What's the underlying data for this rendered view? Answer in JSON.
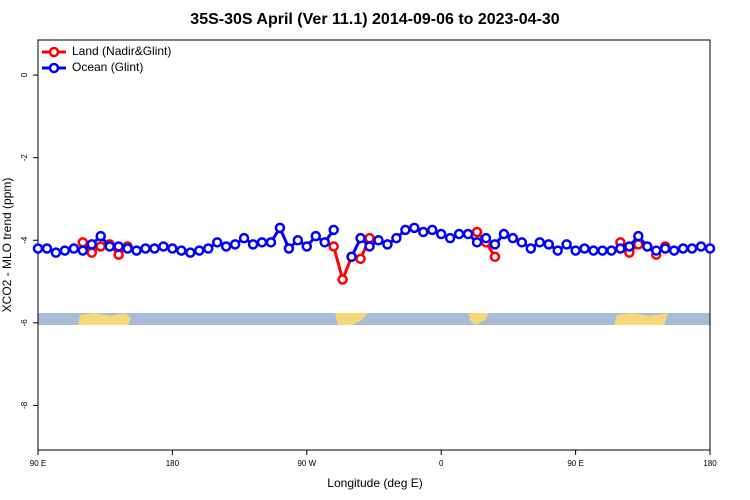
{
  "chart_data": {
    "type": "line",
    "title": "35S-30S April (Ver 11.1)   2014-09-06 to 2023-04-30",
    "x_label": "Longitude (deg E)",
    "y_label": "XCO2 - MLO trend (ppm)",
    "x": [
      -270,
      -264,
      -258,
      -252,
      -246,
      -240,
      -234,
      -228,
      -222,
      -216,
      -210,
      -204,
      -198,
      -192,
      -186,
      -180,
      -174,
      -168,
      -162,
      -156,
      -150,
      -144,
      -138,
      -132,
      -126,
      -120,
      -114,
      -108,
      -102,
      -96,
      -90,
      -84,
      -78,
      -72,
      -66,
      -60,
      -54,
      -48,
      -42,
      -36,
      -30,
      -24,
      -18,
      -12,
      -6,
      0,
      6,
      12,
      18,
      24,
      30,
      36,
      42,
      48,
      54,
      60,
      66,
      72,
      78,
      84,
      90,
      96,
      102,
      108,
      114,
      120,
      126,
      132,
      138,
      144,
      150,
      156,
      162,
      168,
      174,
      180
    ],
    "series": [
      {
        "name": "Land (Nadir&Glint)",
        "color": "#ff0000",
        "values": [
          null,
          null,
          null,
          null,
          null,
          -4.05,
          -4.3,
          -4.15,
          -4.1,
          -4.35,
          -4.15,
          null,
          null,
          null,
          null,
          null,
          null,
          null,
          null,
          null,
          null,
          null,
          null,
          null,
          null,
          null,
          null,
          null,
          null,
          null,
          null,
          null,
          null,
          -4.15,
          -4.95,
          -4.4,
          -4.45,
          -3.95,
          null,
          null,
          null,
          null,
          null,
          null,
          null,
          null,
          null,
          null,
          null,
          -3.8,
          -4.05,
          -4.4,
          null,
          null,
          null,
          null,
          null,
          null,
          null,
          null,
          null,
          null,
          null,
          null,
          null,
          -4.05,
          -4.3,
          -4.1,
          -4.15,
          -4.35,
          -4.15,
          null,
          null,
          null,
          null,
          null
        ]
      },
      {
        "name": "Ocean (Glint)",
        "color": "#0000ff",
        "values": [
          -4.2,
          -4.2,
          -4.3,
          -4.25,
          -4.2,
          -4.25,
          -4.1,
          -3.9,
          -4.15,
          -4.15,
          -4.2,
          -4.25,
          -4.2,
          -4.2,
          -4.15,
          -4.2,
          -4.25,
          -4.3,
          -4.25,
          -4.2,
          -4.05,
          -4.15,
          -4.1,
          -3.95,
          -4.1,
          -4.05,
          -4.05,
          -3.7,
          -4.2,
          -4.0,
          -4.15,
          -3.9,
          -4.05,
          -3.75,
          null,
          -4.4,
          -3.95,
          -4.15,
          -4.0,
          -4.1,
          -3.95,
          -3.75,
          -3.7,
          -3.8,
          -3.75,
          -3.85,
          -3.95,
          -3.85,
          -3.85,
          -4.05,
          -3.95,
          -4.1,
          -3.85,
          -3.95,
          -4.05,
          -4.2,
          -4.05,
          -4.1,
          -4.25,
          -4.1,
          -4.25,
          -4.2,
          -4.25,
          -4.25,
          -4.25,
          -4.2,
          -4.15,
          -3.9,
          -4.15,
          -4.25,
          -4.2,
          -4.25,
          -4.2,
          -4.2,
          -4.15,
          -4.2
        ]
      }
    ],
    "xlim": [
      -270,
      180
    ],
    "xticks": [
      {
        "value": -270,
        "label": "90 E"
      },
      {
        "value": -180,
        "label": "180"
      },
      {
        "value": -90,
        "label": "90 W"
      },
      0,
      {
        "value": 90,
        "label": "90 E"
      },
      180
    ],
    "ylim": [
      -9.08,
      0.85
    ],
    "yticks": [
      0,
      -2,
      -4,
      -6,
      -8
    ],
    "legend": "top-left"
  }
}
